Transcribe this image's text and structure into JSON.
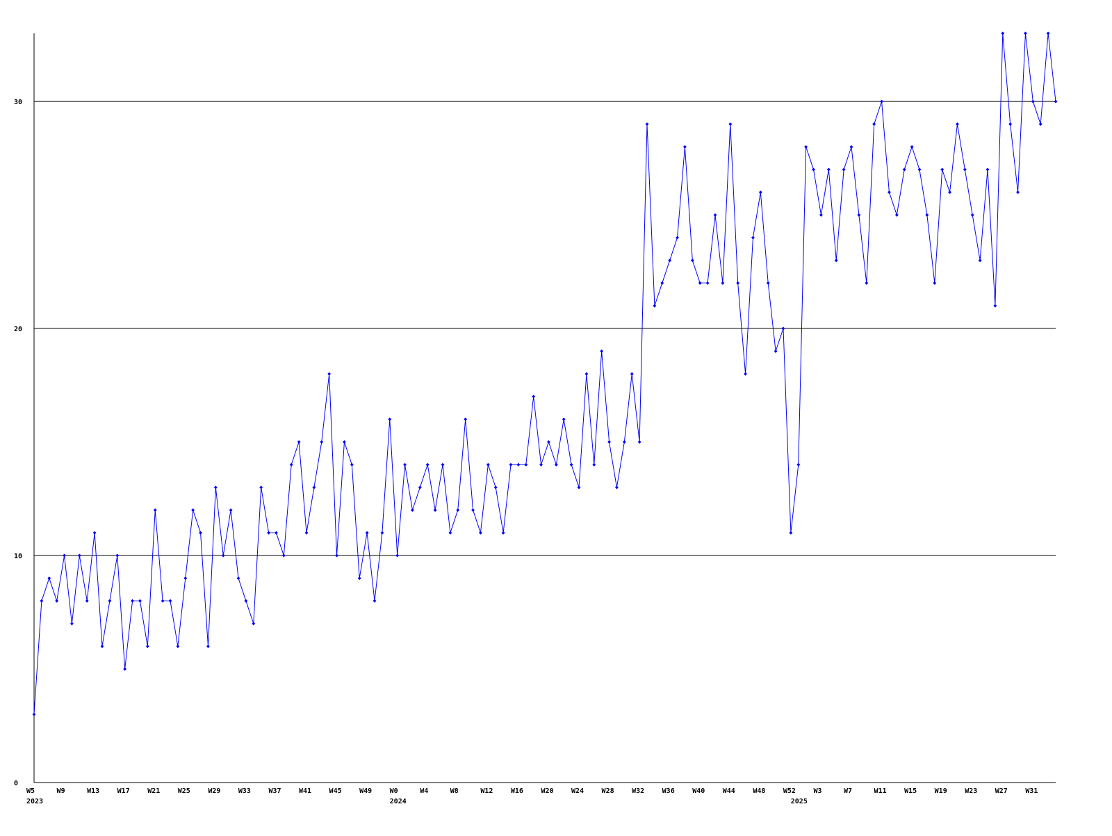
{
  "chart_data": {
    "type": "line",
    "categories": [
      "W5",
      null,
      null,
      null,
      "W9",
      null,
      null,
      null,
      "W13",
      null,
      null,
      null,
      "W17",
      null,
      null,
      null,
      "W21",
      null,
      null,
      null,
      "W25",
      null,
      null,
      null,
      "W29",
      null,
      null,
      null,
      "W33",
      null,
      null,
      null,
      "W37",
      null,
      null,
      null,
      "W41",
      null,
      null,
      null,
      "W45",
      null,
      null,
      null,
      "W49",
      null,
      null,
      null,
      "W0",
      null,
      null,
      null,
      "W4",
      null,
      null,
      null,
      "W8",
      null,
      null,
      null,
      "W12",
      null,
      null,
      null,
      "W16",
      null,
      null,
      null,
      "W20",
      null,
      null,
      null,
      "W24",
      null,
      null,
      null,
      "W28",
      null,
      null,
      null,
      "W32",
      null,
      null,
      null,
      "W36",
      null,
      null,
      null,
      "W40",
      null,
      null,
      null,
      "W44",
      null,
      null,
      null,
      "W48",
      null,
      null,
      null,
      "W52",
      null,
      null,
      null,
      "W3",
      null,
      null,
      null,
      "W7",
      null,
      null,
      null,
      "W11",
      null,
      null,
      null,
      "W15",
      null,
      null,
      null,
      "W19",
      null,
      null,
      null,
      "W23",
      null,
      null,
      null,
      "W27",
      null,
      null,
      null,
      "W31",
      null,
      null,
      null
    ],
    "year_labels": [
      "2023",
      null,
      null,
      null,
      null,
      null,
      null,
      null,
      null,
      null,
      null,
      null,
      null,
      null,
      null,
      null,
      null,
      null,
      null,
      null,
      null,
      null,
      null,
      null,
      null,
      null,
      null,
      null,
      null,
      null,
      null,
      null,
      null,
      null,
      null,
      null,
      null,
      null,
      null,
      null,
      null,
      null,
      null,
      null,
      null,
      null,
      null,
      null,
      "2024",
      null,
      null,
      null,
      null,
      null,
      null,
      null,
      null,
      null,
      null,
      null,
      null,
      null,
      null,
      null,
      null,
      null,
      null,
      null,
      null,
      null,
      null,
      null,
      null,
      null,
      null,
      null,
      null,
      null,
      null,
      null,
      null,
      null,
      null,
      null,
      null,
      null,
      null,
      null,
      null,
      null,
      null,
      null,
      null,
      null,
      null,
      null,
      null,
      null,
      null,
      null,
      null,
      "2025",
      null,
      null,
      null,
      null,
      null,
      null,
      null,
      null,
      null,
      null,
      null,
      null,
      null,
      null,
      null,
      null,
      null,
      null,
      null,
      null,
      null,
      null,
      null,
      null,
      null,
      null,
      null,
      null,
      null,
      null,
      null,
      null,
      null
    ],
    "values": [
      3,
      8,
      9,
      8,
      10,
      7,
      10,
      8,
      11,
      6,
      8,
      10,
      5,
      8,
      8,
      6,
      12,
      8,
      8,
      6,
      9,
      12,
      11,
      6,
      13,
      10,
      12,
      9,
      8,
      7,
      13,
      11,
      11,
      10,
      14,
      15,
      11,
      13,
      15,
      18,
      10,
      15,
      14,
      9,
      11,
      8,
      11,
      16,
      10,
      14,
      12,
      13,
      14,
      12,
      14,
      11,
      12,
      16,
      12,
      11,
      14,
      13,
      11,
      14,
      14,
      14,
      17,
      14,
      15,
      14,
      16,
      14,
      13,
      18,
      14,
      19,
      15,
      13,
      15,
      18,
      15,
      29,
      21,
      22,
      23,
      24,
      28,
      23,
      22,
      22,
      25,
      22,
      29,
      22,
      18,
      24,
      26,
      22,
      19,
      20,
      11,
      14,
      28,
      27,
      25,
      27,
      23,
      27,
      28,
      25,
      22,
      29,
      30,
      26,
      25,
      27,
      28,
      27,
      25,
      22,
      27,
      26,
      29,
      27,
      25,
      23,
      27,
      21,
      33,
      29,
      26,
      33,
      30,
      29,
      33,
      30
    ],
    "color": "#0000ff",
    "ylim": [
      0,
      33
    ],
    "yticks": [
      0,
      10,
      20,
      30
    ],
    "grid": true
  }
}
